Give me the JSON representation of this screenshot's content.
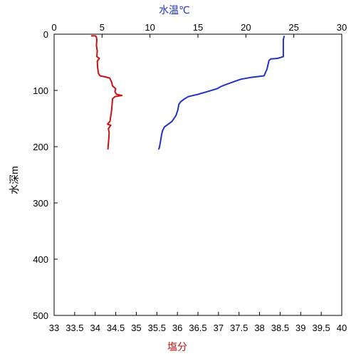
{
  "chart_data": {
    "type": "line",
    "top_axis": {
      "label": "水温℃",
      "color": "#1f33c8",
      "range": [
        0,
        30
      ],
      "ticks": [
        "0",
        "5",
        "10",
        "15",
        "20",
        "25",
        "30"
      ]
    },
    "bottom_axis": {
      "label": "塩分",
      "color": "#cc1111",
      "range": [
        33,
        40
      ],
      "ticks": [
        "33",
        "33.5",
        "34",
        "34.5",
        "35",
        "35.5",
        "36",
        "36.5",
        "37",
        "37.5",
        "38",
        "38.5",
        "39",
        "39.5",
        "40"
      ]
    },
    "left_axis": {
      "label": "水深m",
      "range": [
        0,
        500
      ],
      "inverted": true,
      "ticks": [
        "0",
        "100",
        "200",
        "300",
        "400",
        "500"
      ]
    },
    "grid": false,
    "series": [
      {
        "color": "#cc1111",
        "x_axis": "bottom",
        "points": [
          [
            33.9,
            3
          ],
          [
            34.0,
            3
          ],
          [
            34.03,
            5
          ],
          [
            34.04,
            10
          ],
          [
            34.03,
            20
          ],
          [
            34.05,
            30
          ],
          [
            34.04,
            40
          ],
          [
            34.1,
            43
          ],
          [
            34.05,
            48
          ],
          [
            34.06,
            60
          ],
          [
            34.08,
            70
          ],
          [
            34.12,
            74
          ],
          [
            34.25,
            76
          ],
          [
            34.35,
            78
          ],
          [
            34.4,
            85
          ],
          [
            34.42,
            92
          ],
          [
            34.5,
            97
          ],
          [
            34.48,
            102
          ],
          [
            34.52,
            107
          ],
          [
            34.65,
            109
          ],
          [
            34.48,
            111
          ],
          [
            34.42,
            115
          ],
          [
            34.41,
            125
          ],
          [
            34.4,
            135
          ],
          [
            34.38,
            145
          ],
          [
            34.36,
            155
          ],
          [
            34.3,
            160
          ],
          [
            34.38,
            162
          ],
          [
            34.32,
            168
          ],
          [
            34.34,
            175
          ],
          [
            34.33,
            185
          ],
          [
            34.32,
            195
          ],
          [
            34.31,
            205
          ]
        ]
      },
      {
        "color": "#1f33c8",
        "x_axis": "top",
        "points": [
          [
            24.0,
            3
          ],
          [
            23.9,
            10
          ],
          [
            23.9,
            25
          ],
          [
            23.9,
            40
          ],
          [
            23.3,
            43
          ],
          [
            22.6,
            44
          ],
          [
            22.4,
            47
          ],
          [
            22.3,
            55
          ],
          [
            22.2,
            62
          ],
          [
            22.0,
            70
          ],
          [
            21.9,
            74
          ],
          [
            20.5,
            77
          ],
          [
            19.5,
            80
          ],
          [
            18.8,
            84
          ],
          [
            18.0,
            89
          ],
          [
            17.4,
            93
          ],
          [
            17.0,
            97
          ],
          [
            16.0,
            102
          ],
          [
            15.0,
            107
          ],
          [
            14.0,
            111
          ],
          [
            13.6,
            115
          ],
          [
            13.2,
            120
          ],
          [
            13.0,
            125
          ],
          [
            12.9,
            135
          ],
          [
            12.7,
            145
          ],
          [
            12.3,
            155
          ],
          [
            11.9,
            160
          ],
          [
            11.5,
            165
          ],
          [
            11.3,
            172
          ],
          [
            11.2,
            180
          ],
          [
            11.1,
            190
          ],
          [
            11.0,
            200
          ],
          [
            10.9,
            205
          ]
        ]
      }
    ]
  }
}
